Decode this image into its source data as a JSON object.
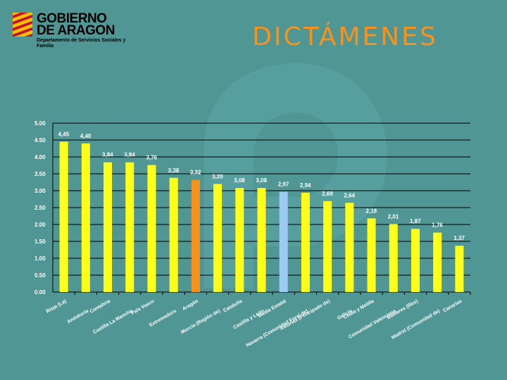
{
  "header": {
    "logo_line1": "GOBIERNO",
    "logo_line2": "DE ARAGON",
    "logo_dept": "Departamento de Servicios Sociales y Familia",
    "title": "DICTÁMENES"
  },
  "colors": {
    "background": "#4f9694",
    "title": "#f7931d",
    "bar_default": "#ffff1a",
    "bar_aragon": "#f7931d",
    "bar_average": "#9ccbf2"
  },
  "chart_data": {
    "type": "bar",
    "title": "",
    "xlabel": "",
    "ylabel": "",
    "ylim": [
      0,
      5
    ],
    "y_ticks": [
      "0.00",
      "0.50",
      "1.00",
      "1.50",
      "2.00",
      "2.50",
      "3.00",
      "3.50",
      "4.00",
      "4.50",
      "5.00"
    ],
    "categories": [
      "Rioja (La)",
      "Andalucía",
      "Cantabria",
      "Castilla La Mancha",
      "País Vasco",
      "Extremadura",
      "Aragón",
      "Murcia (Región de)",
      "Cataluña",
      "Castilla y León",
      "Media Estatal",
      "Navarra (Comunidad Foral de)",
      "Asturias (Principado de)",
      "Galicia",
      "Ceuta y Melilla",
      "Comunidad Valenciana",
      "Baleares (Illes)",
      "Madrid (Comunidad de)",
      "Canarias"
    ],
    "values": [
      4.45,
      4.4,
      3.84,
      3.84,
      3.76,
      3.38,
      3.32,
      3.2,
      3.08,
      3.08,
      2.97,
      2.94,
      2.69,
      2.64,
      2.18,
      2.01,
      1.87,
      1.76,
      1.37
    ],
    "value_labels": [
      "4,45",
      "4,40",
      "3,84",
      "3,84",
      "3,76",
      "3,38",
      "3,32",
      "3,20",
      "3,08",
      "3,08",
      "2,97",
      "2,94",
      "2,69",
      "2,64",
      "2,18",
      "2,01",
      "1,87",
      "1,76",
      "1,37"
    ],
    "highlight": {
      "Aragón": "#f7931d",
      "Media Estatal": "#9ccbf2"
    },
    "grid": true
  }
}
